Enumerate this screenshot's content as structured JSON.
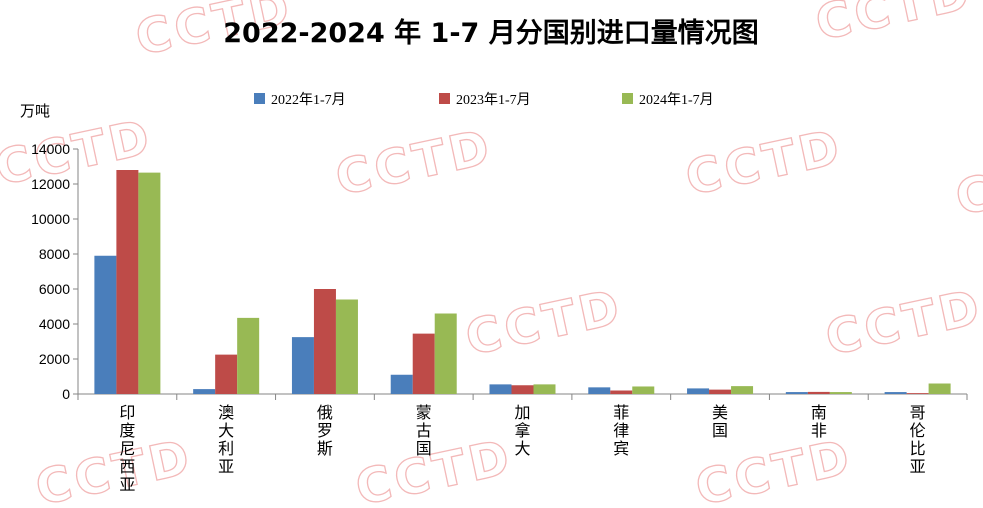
{
  "chart_data": {
    "type": "bar",
    "title": "2022-2024 年 1-7 月分国别进口量情况图",
    "ylabel": "万吨",
    "xlabel": "",
    "ylim": [
      0,
      14000
    ],
    "yticks": [
      0,
      2000,
      4000,
      6000,
      8000,
      10000,
      12000,
      14000
    ],
    "grid": false,
    "legend_position": "top",
    "categories": [
      "印度尼西亚",
      "澳大利亚",
      "俄罗斯",
      "蒙古国",
      "加拿大",
      "菲律宾",
      "美国",
      "南非",
      "哥伦比亚"
    ],
    "series": [
      {
        "name": "2022年1-7月",
        "color": "#4a7ebb",
        "values": [
          7900,
          280,
          3250,
          1100,
          550,
          380,
          320,
          110,
          110
        ]
      },
      {
        "name": "2023年1-7月",
        "color": "#be4b48",
        "values": [
          12800,
          2250,
          6000,
          3450,
          500,
          200,
          250,
          120,
          50
        ]
      },
      {
        "name": "2024年1-7月",
        "color": "#98b954",
        "values": [
          12650,
          4350,
          5400,
          4600,
          550,
          430,
          450,
          110,
          600
        ]
      }
    ],
    "watermark": "CCTD"
  }
}
